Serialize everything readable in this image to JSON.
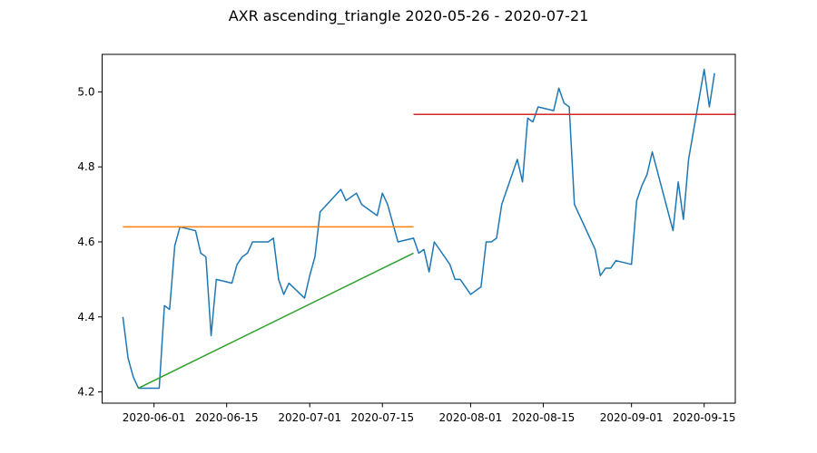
{
  "chart_data": {
    "type": "line",
    "title": "AXR ascending_triangle 2020-05-26 - 2020-07-21",
    "xlabel": "",
    "ylabel": "",
    "x_range": [
      "2020-05-22",
      "2020-09-21"
    ],
    "ylim": [
      4.17,
      5.1
    ],
    "grid": false,
    "x_ticks": [
      "2020-06-01",
      "2020-06-15",
      "2020-07-01",
      "2020-07-15",
      "2020-08-01",
      "2020-08-15",
      "2020-09-01",
      "2020-09-15"
    ],
    "y_ticks": [
      4.2,
      4.4,
      4.6,
      4.8,
      5.0
    ],
    "y_tick_labels": [
      "4.2",
      "4.4",
      "4.6",
      "4.8",
      "5.0"
    ],
    "series": [
      {
        "color": "#1f77b4",
        "points": [
          [
            "2020-05-26",
            4.4
          ],
          [
            "2020-05-27",
            4.29
          ],
          [
            "2020-05-28",
            4.24
          ],
          [
            "2020-05-29",
            4.21
          ],
          [
            "2020-06-01",
            4.21
          ],
          [
            "2020-06-02",
            4.21
          ],
          [
            "2020-06-03",
            4.43
          ],
          [
            "2020-06-04",
            4.42
          ],
          [
            "2020-06-05",
            4.59
          ],
          [
            "2020-06-06",
            4.64
          ],
          [
            "2020-06-09",
            4.63
          ],
          [
            "2020-06-10",
            4.57
          ],
          [
            "2020-06-11",
            4.56
          ],
          [
            "2020-06-12",
            4.35
          ],
          [
            "2020-06-13",
            4.5
          ],
          [
            "2020-06-16",
            4.49
          ],
          [
            "2020-06-17",
            4.54
          ],
          [
            "2020-06-18",
            4.56
          ],
          [
            "2020-06-19",
            4.57
          ],
          [
            "2020-06-20",
            4.6
          ],
          [
            "2020-06-23",
            4.6
          ],
          [
            "2020-06-24",
            4.61
          ],
          [
            "2020-06-25",
            4.5
          ],
          [
            "2020-06-26",
            4.46
          ],
          [
            "2020-06-27",
            4.49
          ],
          [
            "2020-06-30",
            4.45
          ],
          [
            "2020-07-01",
            4.51
          ],
          [
            "2020-07-02",
            4.56
          ],
          [
            "2020-07-03",
            4.68
          ],
          [
            "2020-07-07",
            4.74
          ],
          [
            "2020-07-08",
            4.71
          ],
          [
            "2020-07-10",
            4.73
          ],
          [
            "2020-07-11",
            4.7
          ],
          [
            "2020-07-14",
            4.67
          ],
          [
            "2020-07-15",
            4.73
          ],
          [
            "2020-07-16",
            4.7
          ],
          [
            "2020-07-17",
            4.65
          ],
          [
            "2020-07-18",
            4.6
          ],
          [
            "2020-07-21",
            4.61
          ],
          [
            "2020-07-22",
            4.57
          ],
          [
            "2020-07-23",
            4.58
          ],
          [
            "2020-07-24",
            4.52
          ],
          [
            "2020-07-25",
            4.6
          ],
          [
            "2020-07-28",
            4.54
          ],
          [
            "2020-07-29",
            4.5
          ],
          [
            "2020-07-30",
            4.5
          ],
          [
            "2020-08-01",
            4.46
          ],
          [
            "2020-08-03",
            4.48
          ],
          [
            "2020-08-04",
            4.6
          ],
          [
            "2020-08-05",
            4.6
          ],
          [
            "2020-08-06",
            4.61
          ],
          [
            "2020-08-07",
            4.7
          ],
          [
            "2020-08-10",
            4.82
          ],
          [
            "2020-08-11",
            4.76
          ],
          [
            "2020-08-12",
            4.93
          ],
          [
            "2020-08-13",
            4.92
          ],
          [
            "2020-08-14",
            4.96
          ],
          [
            "2020-08-17",
            4.95
          ],
          [
            "2020-08-18",
            5.01
          ],
          [
            "2020-08-19",
            4.97
          ],
          [
            "2020-08-20",
            4.96
          ],
          [
            "2020-08-21",
            4.7
          ],
          [
            "2020-08-25",
            4.58
          ],
          [
            "2020-08-26",
            4.51
          ],
          [
            "2020-08-27",
            4.53
          ],
          [
            "2020-08-28",
            4.53
          ],
          [
            "2020-08-29",
            4.55
          ],
          [
            "2020-09-01",
            4.54
          ],
          [
            "2020-09-02",
            4.71
          ],
          [
            "2020-09-03",
            4.75
          ],
          [
            "2020-09-04",
            4.78
          ],
          [
            "2020-09-05",
            4.84
          ],
          [
            "2020-09-09",
            4.63
          ],
          [
            "2020-09-10",
            4.76
          ],
          [
            "2020-09-11",
            4.66
          ],
          [
            "2020-09-12",
            4.82
          ],
          [
            "2020-09-15",
            5.06
          ],
          [
            "2020-09-16",
            4.96
          ],
          [
            "2020-09-17",
            5.05
          ]
        ]
      },
      {
        "color": "#ff7f0e",
        "points": [
          [
            "2020-05-26",
            4.64
          ],
          [
            "2020-07-21",
            4.64
          ]
        ]
      },
      {
        "color": "#2ca02c",
        "points": [
          [
            "2020-05-29",
            4.21
          ],
          [
            "2020-07-21",
            4.57
          ]
        ]
      },
      {
        "color": "#d62728",
        "points": [
          [
            "2020-07-21",
            4.94
          ],
          [
            "2020-09-21",
            4.94
          ]
        ]
      }
    ]
  }
}
